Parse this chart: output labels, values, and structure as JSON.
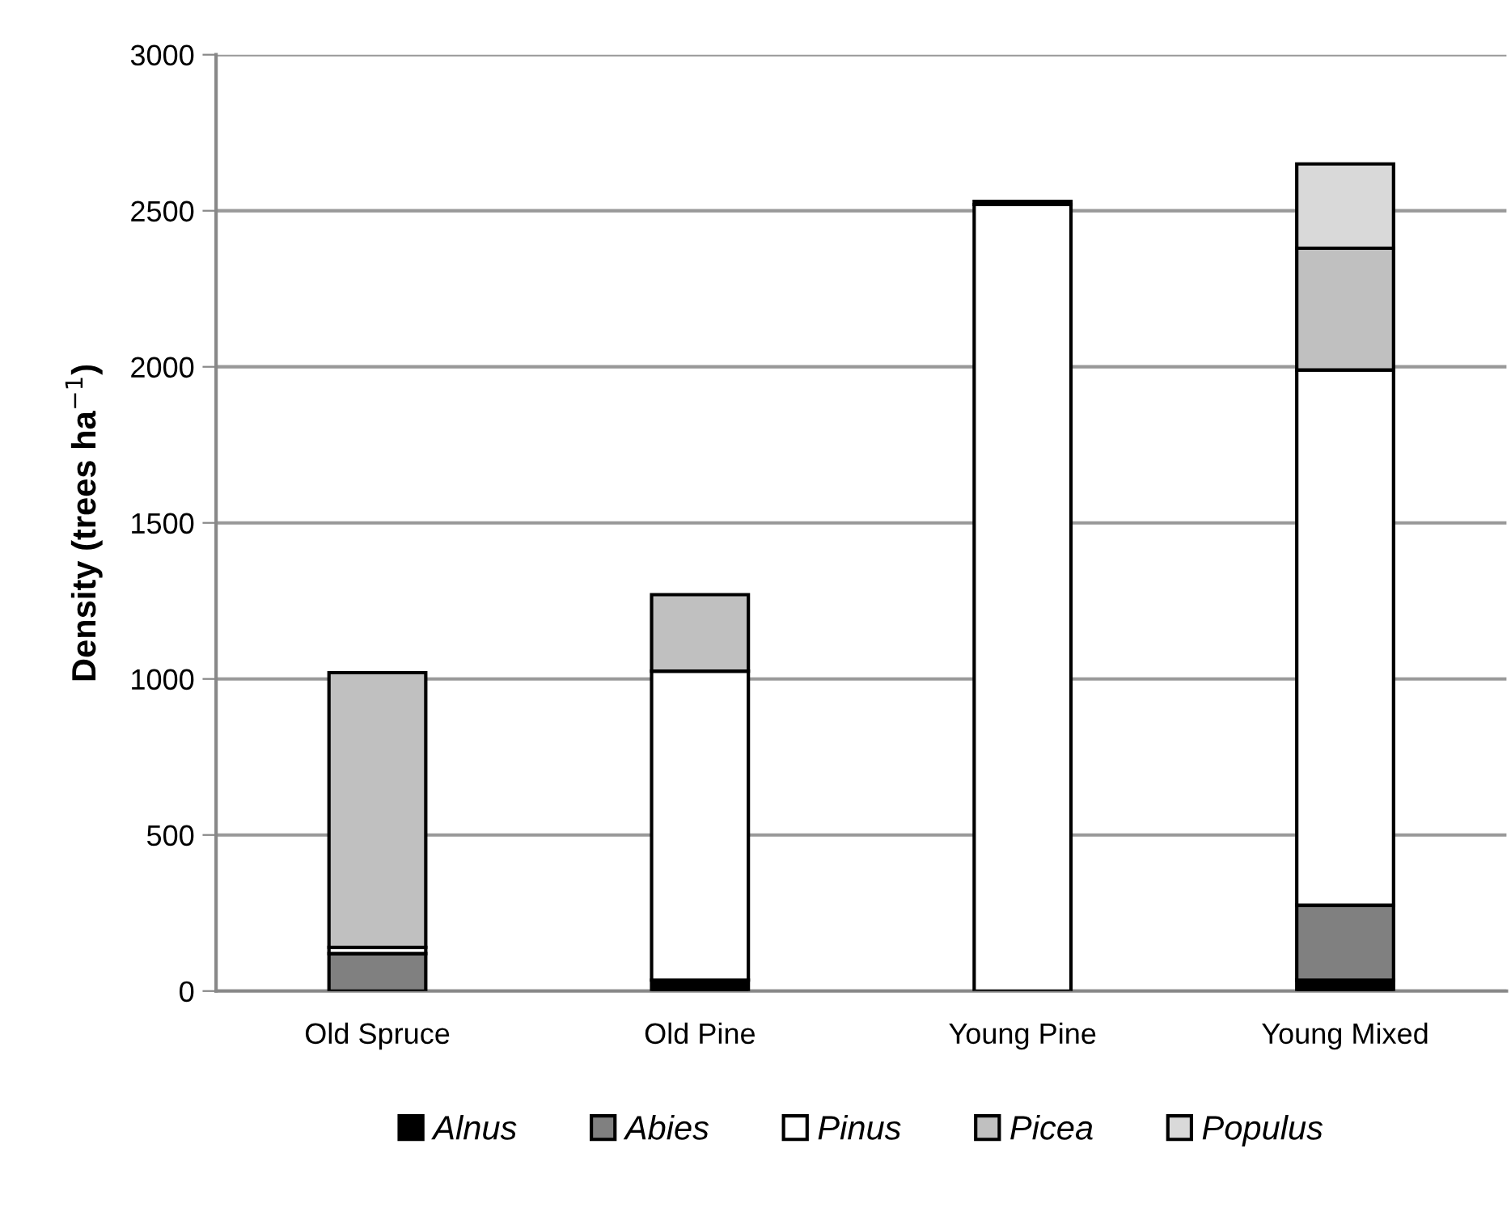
{
  "chart_data": {
    "type": "bar",
    "stacked": true,
    "ylabel": "Density (trees ha$^{−1}$)",
    "categories": [
      "Old Spruce",
      "Old Pine",
      "Young Pine",
      "Young Mixed"
    ],
    "series": [
      {
        "name": "Alnus",
        "color": "#000000",
        "values": [
          null,
          35,
          null,
          35
        ]
      },
      {
        "name": "Abies",
        "color": "#808080",
        "values": [
          120,
          null,
          null,
          240
        ]
      },
      {
        "name": "Pinus",
        "color": "#ffffff",
        "values": [
          20,
          990,
          2520,
          1715
        ]
      },
      {
        "name": "Picea",
        "color": "#c0c0c0",
        "values": [
          880,
          245,
          10,
          390
        ]
      },
      {
        "name": "Populus",
        "color": "#d9d9d9",
        "values": [
          null,
          null,
          null,
          270
        ]
      }
    ],
    "ylim": [
      0,
      3000
    ],
    "yticks": [
      0,
      500,
      1000,
      1500,
      2000,
      2500,
      3000
    ],
    "grid": "y",
    "legend": "bottom"
  }
}
